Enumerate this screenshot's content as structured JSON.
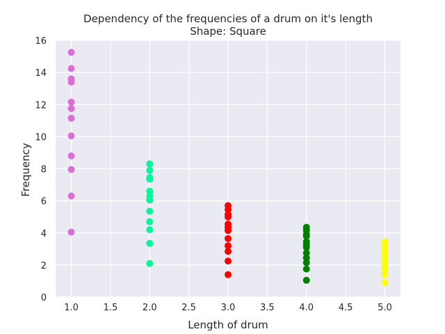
{
  "chart_data": {
    "type": "scatter",
    "title": "Dependency of the frequencies of a drum on it's length",
    "subtitle": "Shape: Square",
    "xlabel": "Length of drum",
    "ylabel": "Frequency",
    "xlim": [
      0.8,
      5.2
    ],
    "ylim": [
      0,
      16
    ],
    "xticks": [
      1.0,
      1.5,
      2.0,
      2.5,
      3.0,
      3.5,
      4.0,
      4.5,
      5.0
    ],
    "xtick_labels": [
      "1.0",
      "1.5",
      "2.0",
      "2.5",
      "3.0",
      "3.5",
      "4.0",
      "4.5",
      "5.0"
    ],
    "yticks": [
      0,
      2,
      4,
      6,
      8,
      10,
      12,
      14,
      16
    ],
    "ytick_labels": [
      "0",
      "2",
      "4",
      "6",
      "8",
      "10",
      "12",
      "14",
      "16"
    ],
    "grid": true,
    "background": "#eaeaf2",
    "series": [
      {
        "x": 1.0,
        "color": "#da70d6",
        "values": [
          15.25,
          14.25,
          13.6,
          13.4,
          12.15,
          11.75,
          11.15,
          10.05,
          8.8,
          7.95,
          6.3,
          4.05
        ]
      },
      {
        "x": 2.0,
        "color": "#00fa9a",
        "values": [
          8.3,
          7.9,
          7.45,
          7.35,
          6.6,
          6.3,
          6.05,
          5.35,
          4.7,
          4.2,
          3.35,
          2.1
        ]
      },
      {
        "x": 3.0,
        "color": "#ff0000",
        "values": [
          5.7,
          5.45,
          5.15,
          5.0,
          4.55,
          4.35,
          4.15,
          3.65,
          3.2,
          2.85,
          2.25,
          1.4
        ]
      },
      {
        "x": 4.0,
        "color": "#008000",
        "values": [
          4.35,
          4.15,
          3.9,
          3.8,
          3.45,
          3.25,
          3.1,
          2.75,
          2.45,
          2.15,
          1.75,
          1.05
        ]
      },
      {
        "x": 5.0,
        "color": "#ffff00",
        "values": [
          3.45,
          3.3,
          3.1,
          3.0,
          2.75,
          2.6,
          2.45,
          2.2,
          1.95,
          1.7,
          1.4,
          0.9
        ]
      }
    ]
  }
}
